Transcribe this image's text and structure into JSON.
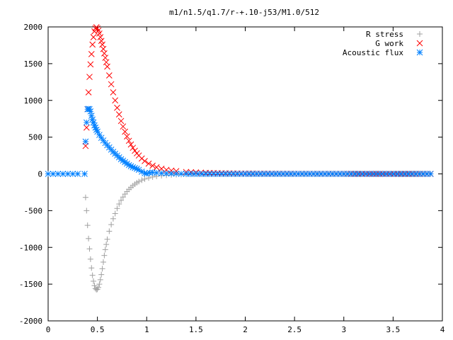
{
  "chart_data": {
    "type": "scatter",
    "title": "m1/n1.5/q1.7/r-+.10-j53/M1.0/512",
    "xlabel": "",
    "ylabel": "",
    "xlim": [
      0,
      4
    ],
    "ylim": [
      -2000,
      2000
    ],
    "x_ticks": [
      "0",
      "0.5",
      "1",
      "1.5",
      "2",
      "2.5",
      "3",
      "3.5",
      "4"
    ],
    "y_ticks": [
      "2000",
      "1500",
      "1000",
      "500",
      "0",
      "-500",
      "-1000",
      "-1500",
      "-2000"
    ],
    "grid": false,
    "legend_position": "top-right",
    "series": [
      {
        "name": "R stress",
        "marker": "plus",
        "color": "#a0a0a0",
        "points": [
          [
            0.38,
            -320
          ],
          [
            0.39,
            -500
          ],
          [
            0.4,
            -700
          ],
          [
            0.41,
            -880
          ],
          [
            0.42,
            -1020
          ],
          [
            0.43,
            -1160
          ],
          [
            0.44,
            -1280
          ],
          [
            0.45,
            -1380
          ],
          [
            0.46,
            -1460
          ],
          [
            0.47,
            -1520
          ],
          [
            0.48,
            -1560
          ],
          [
            0.49,
            -1575
          ],
          [
            0.5,
            -1570
          ],
          [
            0.51,
            -1545
          ],
          [
            0.52,
            -1500
          ],
          [
            0.53,
            -1440
          ],
          [
            0.54,
            -1370
          ],
          [
            0.55,
            -1290
          ],
          [
            0.56,
            -1200
          ],
          [
            0.57,
            -1110
          ],
          [
            0.58,
            -1030
          ],
          [
            0.59,
            -960
          ],
          [
            0.6,
            -890
          ],
          [
            0.62,
            -780
          ],
          [
            0.64,
            -690
          ],
          [
            0.66,
            -610
          ],
          [
            0.68,
            -540
          ],
          [
            0.7,
            -470
          ],
          [
            0.72,
            -410
          ],
          [
            0.74,
            -360
          ],
          [
            0.76,
            -315
          ],
          [
            0.78,
            -275
          ],
          [
            0.8,
            -240
          ],
          [
            0.82,
            -210
          ],
          [
            0.84,
            -185
          ],
          [
            0.86,
            -160
          ],
          [
            0.88,
            -140
          ],
          [
            0.9,
            -120
          ],
          [
            0.92,
            -105
          ],
          [
            0.95,
            -85
          ],
          [
            0.98,
            -70
          ],
          [
            1.02,
            -55
          ],
          [
            1.06,
            -42
          ],
          [
            1.1,
            -32
          ],
          [
            1.15,
            -24
          ],
          [
            1.2,
            -18
          ],
          [
            1.3,
            -10
          ],
          [
            1.4,
            -6
          ],
          [
            1.6,
            -3
          ],
          [
            1.8,
            -1
          ],
          [
            2.0,
            0
          ],
          [
            2.5,
            0
          ],
          [
            3.0,
            0
          ],
          [
            3.4,
            0
          ],
          [
            3.88,
            0
          ]
        ]
      },
      {
        "name": "G work",
        "marker": "cross",
        "color": "#ff0000",
        "points": [
          [
            0.38,
            380
          ],
          [
            0.39,
            630
          ],
          [
            0.4,
            880
          ],
          [
            0.41,
            1110
          ],
          [
            0.42,
            1320
          ],
          [
            0.43,
            1490
          ],
          [
            0.44,
            1630
          ],
          [
            0.45,
            1760
          ],
          [
            0.46,
            1860
          ],
          [
            0.47,
            1940
          ],
          [
            0.48,
            1980
          ],
          [
            0.49,
            1995
          ],
          [
            0.5,
            1980
          ],
          [
            0.51,
            1950
          ],
          [
            0.52,
            1910
          ],
          [
            0.53,
            1860
          ],
          [
            0.54,
            1810
          ],
          [
            0.55,
            1760
          ],
          [
            0.56,
            1700
          ],
          [
            0.57,
            1640
          ],
          [
            0.58,
            1580
          ],
          [
            0.59,
            1520
          ],
          [
            0.6,
            1460
          ],
          [
            0.62,
            1340
          ],
          [
            0.64,
            1220
          ],
          [
            0.66,
            1110
          ],
          [
            0.68,
            1000
          ],
          [
            0.7,
            900
          ],
          [
            0.72,
            810
          ],
          [
            0.74,
            720
          ],
          [
            0.76,
            645
          ],
          [
            0.78,
            575
          ],
          [
            0.8,
            510
          ],
          [
            0.82,
            450
          ],
          [
            0.84,
            400
          ],
          [
            0.86,
            355
          ],
          [
            0.88,
            315
          ],
          [
            0.9,
            280
          ],
          [
            0.92,
            250
          ],
          [
            0.95,
            210
          ],
          [
            0.98,
            175
          ],
          [
            1.02,
            140
          ],
          [
            1.06,
            112
          ],
          [
            1.1,
            90
          ],
          [
            1.15,
            70
          ],
          [
            1.2,
            55
          ],
          [
            1.25,
            45
          ],
          [
            1.3,
            37
          ],
          [
            1.4,
            26
          ],
          [
            1.5,
            19
          ],
          [
            1.6,
            14
          ],
          [
            1.8,
            8
          ],
          [
            2.0,
            5
          ],
          [
            2.5,
            2
          ],
          [
            3.0,
            1
          ],
          [
            3.4,
            0
          ],
          [
            3.88,
            0
          ]
        ]
      },
      {
        "name": "Acoustic flux",
        "marker": "star",
        "color": "#0080ff",
        "points": [
          [
            0.0,
            0
          ],
          [
            0.1,
            0
          ],
          [
            0.2,
            0
          ],
          [
            0.3,
            0
          ],
          [
            0.37,
            0
          ],
          [
            0.38,
            440
          ],
          [
            0.39,
            700
          ],
          [
            0.4,
            880
          ],
          [
            0.41,
            885
          ],
          [
            0.42,
            880
          ],
          [
            0.43,
            850
          ],
          [
            0.44,
            790
          ],
          [
            0.45,
            740
          ],
          [
            0.46,
            700
          ],
          [
            0.47,
            660
          ],
          [
            0.48,
            630
          ],
          [
            0.49,
            600
          ],
          [
            0.5,
            575
          ],
          [
            0.52,
            530
          ],
          [
            0.54,
            490
          ],
          [
            0.56,
            455
          ],
          [
            0.58,
            420
          ],
          [
            0.6,
            390
          ],
          [
            0.62,
            360
          ],
          [
            0.64,
            330
          ],
          [
            0.66,
            300
          ],
          [
            0.68,
            275
          ],
          [
            0.7,
            250
          ],
          [
            0.72,
            225
          ],
          [
            0.74,
            200
          ],
          [
            0.76,
            180
          ],
          [
            0.78,
            160
          ],
          [
            0.8,
            140
          ],
          [
            0.82,
            120
          ],
          [
            0.84,
            105
          ],
          [
            0.86,
            90
          ],
          [
            0.88,
            80
          ],
          [
            0.9,
            70
          ],
          [
            0.92,
            55
          ],
          [
            0.95,
            30
          ],
          [
            0.98,
            10
          ],
          [
            1.0,
            5
          ],
          [
            1.03,
            15
          ],
          [
            1.06,
            20
          ],
          [
            1.1,
            15
          ],
          [
            1.15,
            10
          ],
          [
            1.2,
            6
          ],
          [
            1.3,
            3
          ],
          [
            1.4,
            1
          ],
          [
            1.6,
            0
          ],
          [
            1.8,
            0
          ],
          [
            2.0,
            0
          ],
          [
            2.5,
            0
          ],
          [
            3.0,
            0
          ],
          [
            3.5,
            0
          ],
          [
            3.88,
            0
          ]
        ]
      }
    ]
  }
}
